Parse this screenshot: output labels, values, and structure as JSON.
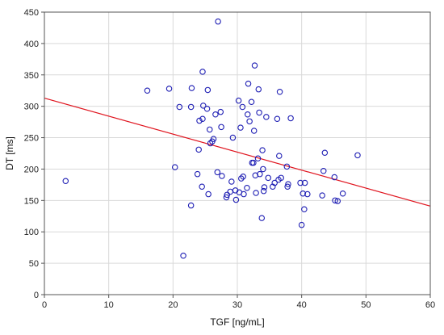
{
  "chart_data": {
    "type": "scatter",
    "title": "",
    "xlabel": "TGF [ng/mL]",
    "ylabel": "DT [ms]",
    "xlim": [
      0,
      60
    ],
    "ylim": [
      0,
      450
    ],
    "xticks": [
      0,
      10,
      20,
      30,
      40,
      50,
      60
    ],
    "yticks": [
      0,
      50,
      100,
      150,
      200,
      250,
      300,
      350,
      400,
      450
    ],
    "grid": true,
    "colors": {
      "points": "#1f1fb4",
      "trend": "#e0141e",
      "grid": "#d9d9d9",
      "frame": "#555555"
    },
    "trendline": {
      "x": [
        0,
        60
      ],
      "y": [
        313,
        141
      ]
    },
    "points": [
      {
        "x": 3.3,
        "y": 181
      },
      {
        "x": 16.0,
        "y": 325
      },
      {
        "x": 19.4,
        "y": 328
      },
      {
        "x": 20.3,
        "y": 203
      },
      {
        "x": 21.0,
        "y": 299
      },
      {
        "x": 21.6,
        "y": 62
      },
      {
        "x": 22.8,
        "y": 142
      },
      {
        "x": 22.8,
        "y": 299
      },
      {
        "x": 22.9,
        "y": 329
      },
      {
        "x": 23.8,
        "y": 192
      },
      {
        "x": 24.0,
        "y": 231
      },
      {
        "x": 24.1,
        "y": 277
      },
      {
        "x": 24.5,
        "y": 172
      },
      {
        "x": 24.6,
        "y": 280
      },
      {
        "x": 24.6,
        "y": 355
      },
      {
        "x": 24.7,
        "y": 301
      },
      {
        "x": 25.3,
        "y": 296
      },
      {
        "x": 25.4,
        "y": 326
      },
      {
        "x": 25.5,
        "y": 160
      },
      {
        "x": 25.7,
        "y": 263
      },
      {
        "x": 25.8,
        "y": 241
      },
      {
        "x": 26.1,
        "y": 244
      },
      {
        "x": 26.3,
        "y": 248
      },
      {
        "x": 26.6,
        "y": 287
      },
      {
        "x": 26.9,
        "y": 195
      },
      {
        "x": 27.0,
        "y": 435
      },
      {
        "x": 27.4,
        "y": 291
      },
      {
        "x": 27.5,
        "y": 267
      },
      {
        "x": 27.6,
        "y": 189
      },
      {
        "x": 28.3,
        "y": 155
      },
      {
        "x": 28.4,
        "y": 159
      },
      {
        "x": 28.9,
        "y": 164
      },
      {
        "x": 29.1,
        "y": 180
      },
      {
        "x": 29.3,
        "y": 250
      },
      {
        "x": 29.7,
        "y": 166
      },
      {
        "x": 29.8,
        "y": 151
      },
      {
        "x": 30.2,
        "y": 309
      },
      {
        "x": 30.3,
        "y": 163
      },
      {
        "x": 30.5,
        "y": 266
      },
      {
        "x": 30.6,
        "y": 185
      },
      {
        "x": 30.8,
        "y": 299
      },
      {
        "x": 30.9,
        "y": 188
      },
      {
        "x": 31.0,
        "y": 160
      },
      {
        "x": 31.5,
        "y": 170
      },
      {
        "x": 31.6,
        "y": 287
      },
      {
        "x": 31.7,
        "y": 336
      },
      {
        "x": 31.9,
        "y": 276
      },
      {
        "x": 32.2,
        "y": 307
      },
      {
        "x": 32.3,
        "y": 210
      },
      {
        "x": 32.5,
        "y": 210
      },
      {
        "x": 32.6,
        "y": 261
      },
      {
        "x": 32.7,
        "y": 365
      },
      {
        "x": 32.8,
        "y": 190
      },
      {
        "x": 32.9,
        "y": 162
      },
      {
        "x": 33.2,
        "y": 217
      },
      {
        "x": 33.3,
        "y": 327
      },
      {
        "x": 33.4,
        "y": 290
      },
      {
        "x": 33.5,
        "y": 192
      },
      {
        "x": 33.8,
        "y": 122
      },
      {
        "x": 33.9,
        "y": 230
      },
      {
        "x": 34.0,
        "y": 200
      },
      {
        "x": 34.1,
        "y": 165
      },
      {
        "x": 34.2,
        "y": 171
      },
      {
        "x": 34.5,
        "y": 283
      },
      {
        "x": 34.8,
        "y": 186
      },
      {
        "x": 35.5,
        "y": 172
      },
      {
        "x": 35.8,
        "y": 178
      },
      {
        "x": 36.2,
        "y": 280
      },
      {
        "x": 36.4,
        "y": 183
      },
      {
        "x": 36.5,
        "y": 221
      },
      {
        "x": 36.6,
        "y": 323
      },
      {
        "x": 36.8,
        "y": 186
      },
      {
        "x": 37.7,
        "y": 204
      },
      {
        "x": 37.8,
        "y": 172
      },
      {
        "x": 37.9,
        "y": 176
      },
      {
        "x": 38.3,
        "y": 281
      },
      {
        "x": 39.8,
        "y": 178
      },
      {
        "x": 40.0,
        "y": 111
      },
      {
        "x": 40.2,
        "y": 161
      },
      {
        "x": 40.4,
        "y": 136
      },
      {
        "x": 40.5,
        "y": 178
      },
      {
        "x": 40.9,
        "y": 160
      },
      {
        "x": 43.2,
        "y": 158
      },
      {
        "x": 43.4,
        "y": 197
      },
      {
        "x": 43.6,
        "y": 226
      },
      {
        "x": 45.1,
        "y": 187
      },
      {
        "x": 45.2,
        "y": 150
      },
      {
        "x": 45.6,
        "y": 149
      },
      {
        "x": 46.4,
        "y": 161
      },
      {
        "x": 48.7,
        "y": 222
      }
    ]
  }
}
